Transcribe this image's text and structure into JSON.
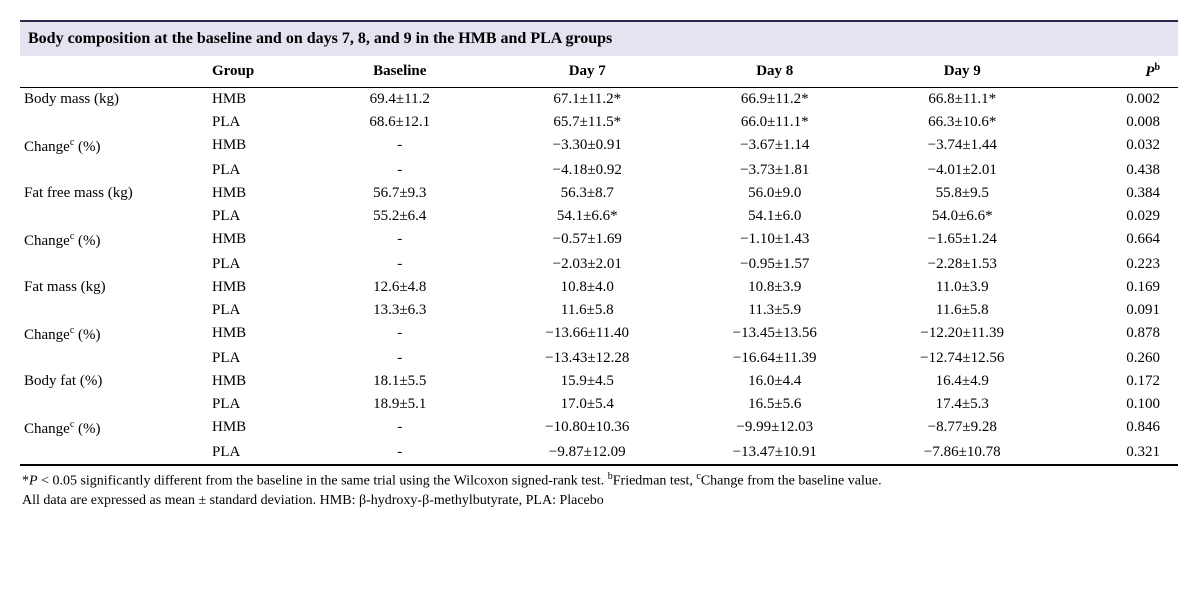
{
  "title": "Body composition at the baseline and on days 7, 8, and 9 in the HMB and PLA groups",
  "columns": {
    "measure": "",
    "group": "Group",
    "baseline": "Baseline",
    "day7": "Day 7",
    "day8": "Day 8",
    "day9": "Day 9",
    "p_label": "P",
    "p_sup": "b"
  },
  "metrics": [
    {
      "label": "Body mass (kg)",
      "rows": [
        {
          "group": "HMB",
          "baseline": "69.4±11.2",
          "day7": "67.1±11.2*",
          "day8": "66.9±11.2*",
          "day9": "66.8±11.1*",
          "p": "0.002"
        },
        {
          "group": "PLA",
          "baseline": "68.6±12.1",
          "day7": "65.7±11.5*",
          "day8": "66.0±11.1*",
          "day9": "66.3±10.6*",
          "p": "0.008"
        }
      ]
    },
    {
      "label_html": "Change<sup class='sup'>c</sup> (%)",
      "rows": [
        {
          "group": "HMB",
          "baseline": "-",
          "day7": "−3.30±0.91",
          "day8": "−3.67±1.14",
          "day9": "−3.74±1.44",
          "p": "0.032"
        },
        {
          "group": "PLA",
          "baseline": "-",
          "day7": "−4.18±0.92",
          "day8": "−3.73±1.81",
          "day9": "−4.01±2.01",
          "p": "0.438"
        }
      ]
    },
    {
      "label": "Fat free mass (kg)",
      "rows": [
        {
          "group": "HMB",
          "baseline": "56.7±9.3",
          "day7": "56.3±8.7",
          "day8": "56.0±9.0",
          "day9": "55.8±9.5",
          "p": "0.384"
        },
        {
          "group": "PLA",
          "baseline": "55.2±6.4",
          "day7": "54.1±6.6*",
          "day8": "54.1±6.0",
          "day9": "54.0±6.6*",
          "p": "0.029"
        }
      ]
    },
    {
      "label_html": "Change<sup class='sup'>c</sup> (%)",
      "rows": [
        {
          "group": "HMB",
          "baseline": "-",
          "day7": "−0.57±1.69",
          "day8": "−1.10±1.43",
          "day9": "−1.65±1.24",
          "p": "0.664"
        },
        {
          "group": "PLA",
          "baseline": "-",
          "day7": "−2.03±2.01",
          "day8": "−0.95±1.57",
          "day9": "−2.28±1.53",
          "p": "0.223"
        }
      ]
    },
    {
      "label": "Fat mass (kg)",
      "rows": [
        {
          "group": "HMB",
          "baseline": "12.6±4.8",
          "day7": "10.8±4.0",
          "day8": "10.8±3.9",
          "day9": "11.0±3.9",
          "p": "0.169"
        },
        {
          "group": "PLA",
          "baseline": "13.3±6.3",
          "day7": "11.6±5.8",
          "day8": "11.3±5.9",
          "day9": "11.6±5.8",
          "p": "0.091"
        }
      ]
    },
    {
      "label_html": "Change<sup class='sup'>c</sup> (%)",
      "rows": [
        {
          "group": "HMB",
          "baseline": "-",
          "day7": "−13.66±11.40",
          "day8": "−13.45±13.56",
          "day9": "−12.20±11.39",
          "p": "0.878"
        },
        {
          "group": "PLA",
          "baseline": "-",
          "day7": "−13.43±12.28",
          "day8": "−16.64±11.39",
          "day9": "−12.74±12.56",
          "p": "0.260"
        }
      ]
    },
    {
      "label": "Body fat (%)",
      "rows": [
        {
          "group": "HMB",
          "baseline": "18.1±5.5",
          "day7": "15.9±4.5",
          "day8": "16.0±4.4",
          "day9": "16.4±4.9",
          "p": "0.172"
        },
        {
          "group": "PLA",
          "baseline": "18.9±5.1",
          "day7": "17.0±5.4",
          "day8": "16.5±5.6",
          "day9": "17.4±5.3",
          "p": "0.100"
        }
      ]
    },
    {
      "label_html": "Change<sup class='sup'>c</sup> (%)",
      "rows": [
        {
          "group": "HMB",
          "baseline": "-",
          "day7": "−10.80±10.36",
          "day8": "−9.99±12.03",
          "day9": "−8.77±9.28",
          "p": "0.846"
        },
        {
          "group": "PLA",
          "baseline": "-",
          "day7": "−9.87±12.09",
          "day8": "−13.47±10.91",
          "day9": "−7.86±10.78",
          "p": "0.321"
        }
      ]
    }
  ],
  "footnote": {
    "line1_pre": "*",
    "line1_p": "P",
    "line1_post": " < 0.05 significantly different from the baseline in the same trial using the Wilcoxon signed-rank test. ",
    "line1_b_sup": "b",
    "line1_b_text": "Friedman test, ",
    "line1_c_sup": "c",
    "line1_c_text": "Change from the baseline value.",
    "line2": "All data are expressed as mean ± standard deviation. HMB: β-hydroxy-β-methylbutyrate, PLA: Placebo"
  }
}
